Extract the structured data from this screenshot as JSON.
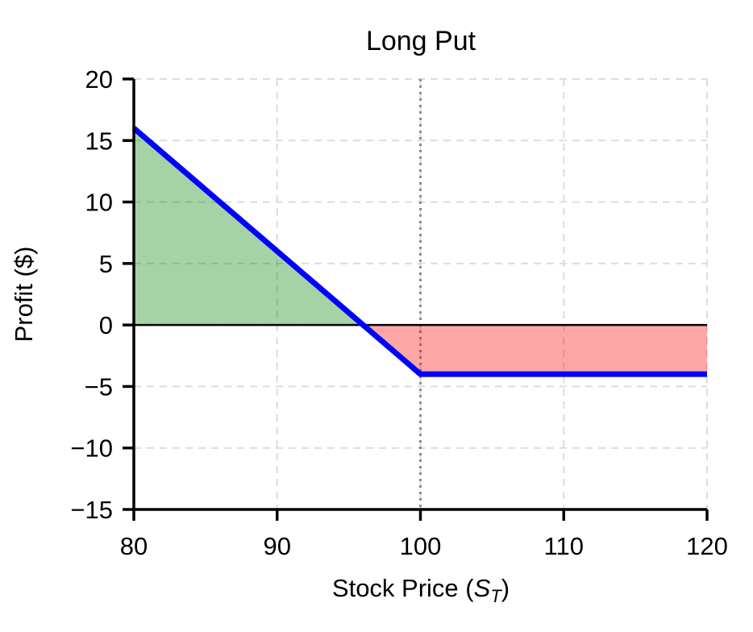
{
  "chart_data": {
    "type": "line",
    "title": "Long Put",
    "ylabel": "Profit ($)",
    "xlabel": {
      "prefix": "Stock Price (",
      "symbol": "S",
      "subscript": "T",
      "suffix": ")"
    },
    "xlim": [
      80,
      120
    ],
    "ylim": [
      -15,
      20
    ],
    "x_ticks": [
      80,
      90,
      100,
      110,
      120
    ],
    "y_ticks": [
      -15,
      -10,
      -5,
      0,
      5,
      10,
      15,
      20
    ],
    "grid": {
      "visible": true,
      "style": "dashed",
      "color": "#dcdcdc"
    },
    "series": [
      {
        "name": "long-put-payoff",
        "x": [
          80,
          100,
          120
        ],
        "y": [
          16,
          -4,
          -4
        ],
        "color": "#0000ff",
        "width": 7
      }
    ],
    "strike_line": {
      "x": 100,
      "style": "dotted",
      "color": "#8c8c8c"
    },
    "zero_line": {
      "y": 0,
      "color": "#000000"
    },
    "regions": [
      {
        "name": "profit-region",
        "color": "#008000",
        "opacity": 0.35,
        "points": [
          [
            80,
            0
          ],
          [
            80,
            16
          ],
          [
            96,
            0
          ]
        ]
      },
      {
        "name": "loss-region",
        "color": "#ff0000",
        "opacity": 0.35,
        "points": [
          [
            96,
            0
          ],
          [
            100,
            -4
          ],
          [
            120,
            -4
          ],
          [
            120,
            0
          ]
        ]
      }
    ],
    "legend": {
      "visible": false
    }
  }
}
